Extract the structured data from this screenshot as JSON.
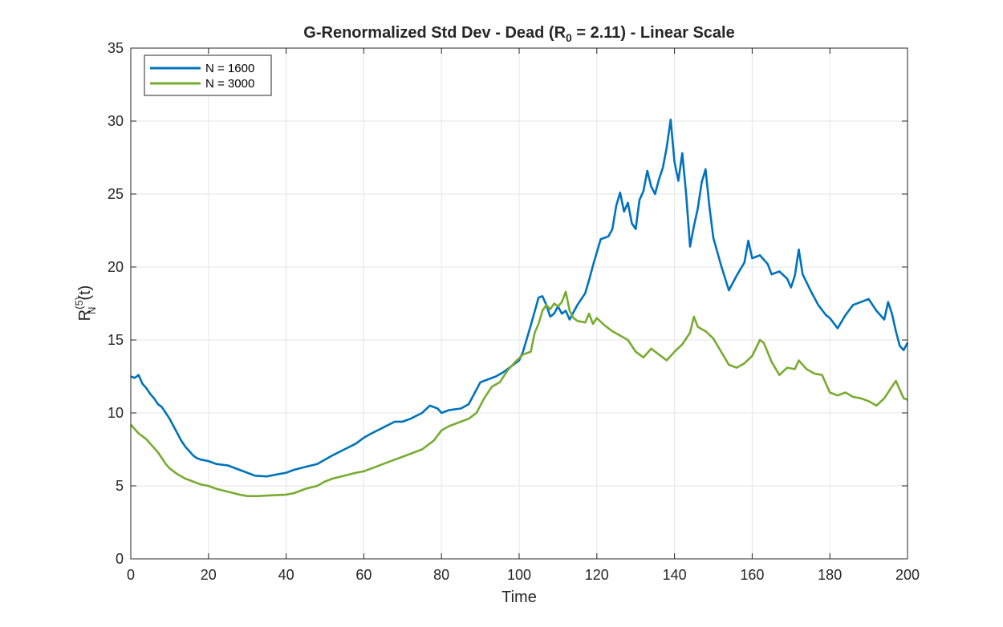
{
  "chart_data": {
    "type": "line",
    "title_parts": {
      "before": "G-Renormalized Std Dev - Dead (R",
      "sub": "0",
      "after": " = 2.11) - Linear Scale"
    },
    "xlabel": "Time",
    "ylabel_parts": {
      "base": "R",
      "sup": "(5)",
      "sub": "N",
      "after": "(t)"
    },
    "xlim": [
      0,
      200
    ],
    "ylim": [
      0,
      35
    ],
    "x_ticks": [
      "0",
      "20",
      "40",
      "60",
      "80",
      "100",
      "120",
      "140",
      "160",
      "180",
      "200"
    ],
    "y_ticks": [
      "0",
      "5",
      "10",
      "15",
      "20",
      "25",
      "30",
      "35"
    ],
    "grid": true,
    "legend_position": "top-left",
    "series": [
      {
        "name": "N = 1600",
        "color": "#0072BD",
        "points": [
          [
            0,
            12.5
          ],
          [
            1,
            12.4
          ],
          [
            2,
            12.6
          ],
          [
            3,
            12.0
          ],
          [
            4,
            11.7
          ],
          [
            5,
            11.3
          ],
          [
            6,
            11.0
          ],
          [
            7,
            10.6
          ],
          [
            8,
            10.4
          ],
          [
            9,
            10.0
          ],
          [
            10,
            9.6
          ],
          [
            11,
            9.1
          ],
          [
            12,
            8.6
          ],
          [
            13,
            8.1
          ],
          [
            14,
            7.7
          ],
          [
            15,
            7.4
          ],
          [
            16,
            7.1
          ],
          [
            17,
            6.9
          ],
          [
            18,
            6.8
          ],
          [
            20,
            6.7
          ],
          [
            22,
            6.5
          ],
          [
            25,
            6.4
          ],
          [
            28,
            6.1
          ],
          [
            30,
            5.9
          ],
          [
            32,
            5.7
          ],
          [
            35,
            5.65
          ],
          [
            38,
            5.8
          ],
          [
            40,
            5.9
          ],
          [
            42,
            6.1
          ],
          [
            45,
            6.3
          ],
          [
            48,
            6.5
          ],
          [
            50,
            6.8
          ],
          [
            52,
            7.1
          ],
          [
            55,
            7.5
          ],
          [
            58,
            7.9
          ],
          [
            60,
            8.3
          ],
          [
            62,
            8.6
          ],
          [
            65,
            9.0
          ],
          [
            68,
            9.4
          ],
          [
            70,
            9.4
          ],
          [
            72,
            9.6
          ],
          [
            75,
            10.0
          ],
          [
            77,
            10.5
          ],
          [
            79,
            10.3
          ],
          [
            80,
            10.0
          ],
          [
            82,
            10.2
          ],
          [
            85,
            10.3
          ],
          [
            87,
            10.6
          ],
          [
            90,
            12.1
          ],
          [
            92,
            12.3
          ],
          [
            94,
            12.5
          ],
          [
            96,
            12.8
          ],
          [
            98,
            13.2
          ],
          [
            100,
            13.6
          ],
          [
            101,
            14.2
          ],
          [
            103,
            16.0
          ],
          [
            105,
            17.9
          ],
          [
            106,
            18.0
          ],
          [
            107,
            17.4
          ],
          [
            108,
            16.6
          ],
          [
            109,
            16.8
          ],
          [
            110,
            17.3
          ],
          [
            111,
            16.8
          ],
          [
            112,
            17.0
          ],
          [
            113,
            16.4
          ],
          [
            115,
            17.4
          ],
          [
            117,
            18.2
          ],
          [
            118,
            19.1
          ],
          [
            119,
            20.1
          ],
          [
            120,
            21.0
          ],
          [
            121,
            21.9
          ],
          [
            123,
            22.1
          ],
          [
            124,
            22.6
          ],
          [
            125,
            24.2
          ],
          [
            126,
            25.1
          ],
          [
            127,
            23.8
          ],
          [
            128,
            24.4
          ],
          [
            129,
            23.0
          ],
          [
            130,
            22.6
          ],
          [
            131,
            24.6
          ],
          [
            132,
            25.2
          ],
          [
            133,
            26.6
          ],
          [
            134,
            25.5
          ],
          [
            135,
            25.0
          ],
          [
            136,
            26.0
          ],
          [
            137,
            26.8
          ],
          [
            138,
            28.2
          ],
          [
            139,
            30.1
          ],
          [
            140,
            27.2
          ],
          [
            141,
            25.9
          ],
          [
            142,
            27.8
          ],
          [
            143,
            25.0
          ],
          [
            144,
            21.4
          ],
          [
            145,
            22.8
          ],
          [
            146,
            24.0
          ],
          [
            147,
            25.8
          ],
          [
            148,
            26.7
          ],
          [
            149,
            24.1
          ],
          [
            150,
            22.0
          ],
          [
            152,
            20.1
          ],
          [
            154,
            18.4
          ],
          [
            156,
            19.4
          ],
          [
            158,
            20.3
          ],
          [
            159,
            21.8
          ],
          [
            160,
            20.6
          ],
          [
            162,
            20.8
          ],
          [
            164,
            20.2
          ],
          [
            165,
            19.5
          ],
          [
            167,
            19.7
          ],
          [
            169,
            19.2
          ],
          [
            170,
            18.6
          ],
          [
            171,
            19.4
          ],
          [
            172,
            21.2
          ],
          [
            173,
            19.5
          ],
          [
            175,
            18.4
          ],
          [
            177,
            17.4
          ],
          [
            179,
            16.7
          ],
          [
            180,
            16.5
          ],
          [
            182,
            15.8
          ],
          [
            184,
            16.7
          ],
          [
            186,
            17.4
          ],
          [
            188,
            17.6
          ],
          [
            190,
            17.8
          ],
          [
            192,
            17.0
          ],
          [
            194,
            16.4
          ],
          [
            195,
            17.6
          ],
          [
            196,
            16.8
          ],
          [
            197,
            15.6
          ],
          [
            198,
            14.6
          ],
          [
            199,
            14.3
          ],
          [
            200,
            14.8
          ]
        ]
      },
      {
        "name": "N = 3000",
        "color": "#77AC30",
        "points": [
          [
            0,
            9.2
          ],
          [
            1,
            8.9
          ],
          [
            2,
            8.6
          ],
          [
            3,
            8.4
          ],
          [
            4,
            8.2
          ],
          [
            5,
            7.9
          ],
          [
            6,
            7.6
          ],
          [
            7,
            7.3
          ],
          [
            8,
            6.9
          ],
          [
            9,
            6.5
          ],
          [
            10,
            6.2
          ],
          [
            12,
            5.8
          ],
          [
            14,
            5.5
          ],
          [
            16,
            5.3
          ],
          [
            18,
            5.1
          ],
          [
            20,
            5.0
          ],
          [
            22,
            4.8
          ],
          [
            25,
            4.6
          ],
          [
            28,
            4.4
          ],
          [
            30,
            4.3
          ],
          [
            33,
            4.3
          ],
          [
            36,
            4.35
          ],
          [
            40,
            4.4
          ],
          [
            42,
            4.5
          ],
          [
            45,
            4.8
          ],
          [
            48,
            5.0
          ],
          [
            50,
            5.3
          ],
          [
            52,
            5.5
          ],
          [
            55,
            5.7
          ],
          [
            58,
            5.9
          ],
          [
            60,
            6.0
          ],
          [
            62,
            6.2
          ],
          [
            65,
            6.5
          ],
          [
            68,
            6.8
          ],
          [
            70,
            7.0
          ],
          [
            72,
            7.2
          ],
          [
            75,
            7.5
          ],
          [
            78,
            8.1
          ],
          [
            80,
            8.8
          ],
          [
            82,
            9.1
          ],
          [
            85,
            9.4
          ],
          [
            87,
            9.6
          ],
          [
            89,
            10.0
          ],
          [
            91,
            11.0
          ],
          [
            93,
            11.8
          ],
          [
            95,
            12.1
          ],
          [
            97,
            12.9
          ],
          [
            99,
            13.5
          ],
          [
            101,
            14.0
          ],
          [
            103,
            14.2
          ],
          [
            104,
            15.5
          ],
          [
            105,
            16.1
          ],
          [
            106,
            17.0
          ],
          [
            107,
            17.4
          ],
          [
            108,
            17.1
          ],
          [
            109,
            17.5
          ],
          [
            110,
            17.3
          ],
          [
            111,
            17.6
          ],
          [
            112,
            18.3
          ],
          [
            113,
            17.0
          ],
          [
            114,
            16.5
          ],
          [
            115,
            16.3
          ],
          [
            117,
            16.2
          ],
          [
            118,
            16.8
          ],
          [
            119,
            16.1
          ],
          [
            120,
            16.5
          ],
          [
            122,
            16.0
          ],
          [
            124,
            15.6
          ],
          [
            126,
            15.3
          ],
          [
            128,
            15.0
          ],
          [
            130,
            14.2
          ],
          [
            132,
            13.8
          ],
          [
            134,
            14.4
          ],
          [
            136,
            14.0
          ],
          [
            138,
            13.6
          ],
          [
            140,
            14.2
          ],
          [
            142,
            14.7
          ],
          [
            144,
            15.5
          ],
          [
            145,
            16.6
          ],
          [
            146,
            15.9
          ],
          [
            148,
            15.6
          ],
          [
            150,
            15.1
          ],
          [
            152,
            14.2
          ],
          [
            154,
            13.3
          ],
          [
            156,
            13.1
          ],
          [
            158,
            13.4
          ],
          [
            160,
            13.9
          ],
          [
            162,
            15.0
          ],
          [
            163,
            14.8
          ],
          [
            165,
            13.5
          ],
          [
            167,
            12.6
          ],
          [
            169,
            13.1
          ],
          [
            171,
            13.0
          ],
          [
            172,
            13.6
          ],
          [
            174,
            13.0
          ],
          [
            176,
            12.7
          ],
          [
            178,
            12.6
          ],
          [
            180,
            11.4
          ],
          [
            182,
            11.2
          ],
          [
            184,
            11.4
          ],
          [
            186,
            11.1
          ],
          [
            188,
            11.0
          ],
          [
            190,
            10.8
          ],
          [
            192,
            10.5
          ],
          [
            194,
            11.0
          ],
          [
            196,
            11.8
          ],
          [
            197,
            12.2
          ],
          [
            198,
            11.6
          ],
          [
            199,
            11.0
          ],
          [
            200,
            10.9
          ]
        ]
      }
    ]
  }
}
